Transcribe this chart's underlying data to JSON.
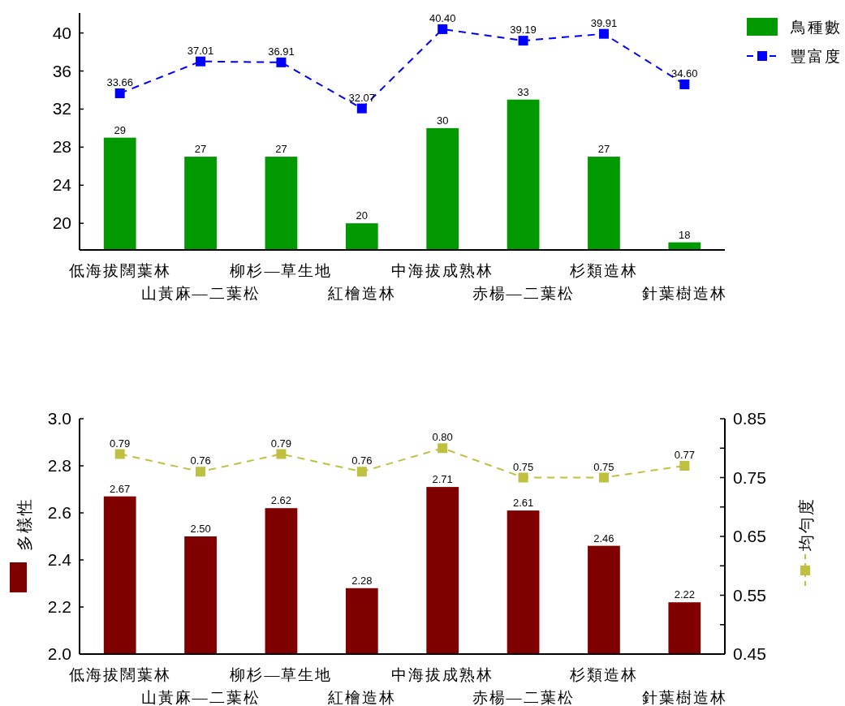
{
  "chart_data": [
    {
      "type": "bar",
      "categories": [
        "低海拔闊葉林",
        "山黃麻—二葉松",
        "柳杉—草生地",
        "紅檜造林",
        "中海拔成熟林",
        "赤楊—二葉松",
        "杉類造林",
        "針葉樹造林"
      ],
      "series": [
        {
          "name": "鳥種數",
          "color": "#009900",
          "values": [
            29,
            27,
            27,
            20,
            30,
            33,
            27,
            18
          ],
          "value_labels": [
            "29",
            "27",
            "27",
            "20",
            "30",
            "33",
            "27",
            "18"
          ]
        },
        {
          "name": "豐富度",
          "type": "line",
          "color": "#0000ff",
          "values": [
            33.66,
            37.01,
            36.91,
            32.07,
            40.4,
            39.19,
            39.91,
            34.6
          ],
          "value_labels": [
            "33.66",
            "37.01",
            "36.91",
            "32.07",
            "40.40",
            "39.19",
            "39.91",
            "34.60"
          ]
        }
      ],
      "ylim": [
        17.2,
        42.1
      ],
      "yticks": [
        20,
        24,
        28,
        32,
        36,
        40
      ],
      "marker": "square",
      "line_style": "dashed",
      "legend": "top right"
    },
    {
      "type": "bar",
      "categories": [
        "低海拔闊葉林",
        "山黃麻—二葉松",
        "柳杉—草生地",
        "紅檜造林",
        "中海拔成熟林",
        "赤楊—二葉松",
        "杉類造林",
        "針葉樹造林"
      ],
      "ylabel": "多樣性",
      "y2label": "均勻度",
      "series": [
        {
          "color": "#800000",
          "values": [
            2.67,
            2.5,
            2.62,
            2.28,
            2.71,
            2.61,
            2.46,
            2.22
          ],
          "value_labels": [
            "2.67",
            "2.50",
            "2.62",
            "2.28",
            "2.71",
            "2.61",
            "2.46",
            "2.22"
          ]
        },
        {
          "type": "line",
          "axis": "y2",
          "color": "#c0c040",
          "values": [
            0.79,
            0.76,
            0.79,
            0.76,
            0.8,
            0.75,
            0.75,
            0.77
          ],
          "value_labels": [
            "0.79",
            "0.76",
            "0.79",
            "0.76",
            "0.80",
            "0.75",
            "0.75",
            "0.77"
          ]
        }
      ],
      "ylim": [
        2.0,
        3.0
      ],
      "yticks": [
        {
          "value": 2.0,
          "label": "2.0"
        },
        {
          "value": 2.2,
          "label": "2.2"
        },
        {
          "value": 2.4,
          "label": "2.4"
        },
        {
          "value": 2.6,
          "label": "2.6"
        },
        {
          "value": 2.8,
          "label": "2.8"
        },
        {
          "value": 3.0,
          "label": "3.0"
        }
      ],
      "y2lim": [
        0.45,
        0.85
      ],
      "y2ticks": [
        0.45,
        {
          "value": 0.5,
          "label": null
        },
        0.55,
        {
          "value": 0.6,
          "label": null
        },
        0.65,
        {
          "value": 0.7,
          "label": null
        },
        0.75,
        {
          "value": 0.8,
          "label": null
        },
        0.85
      ],
      "marker": "square",
      "line_style": "dashed"
    }
  ]
}
